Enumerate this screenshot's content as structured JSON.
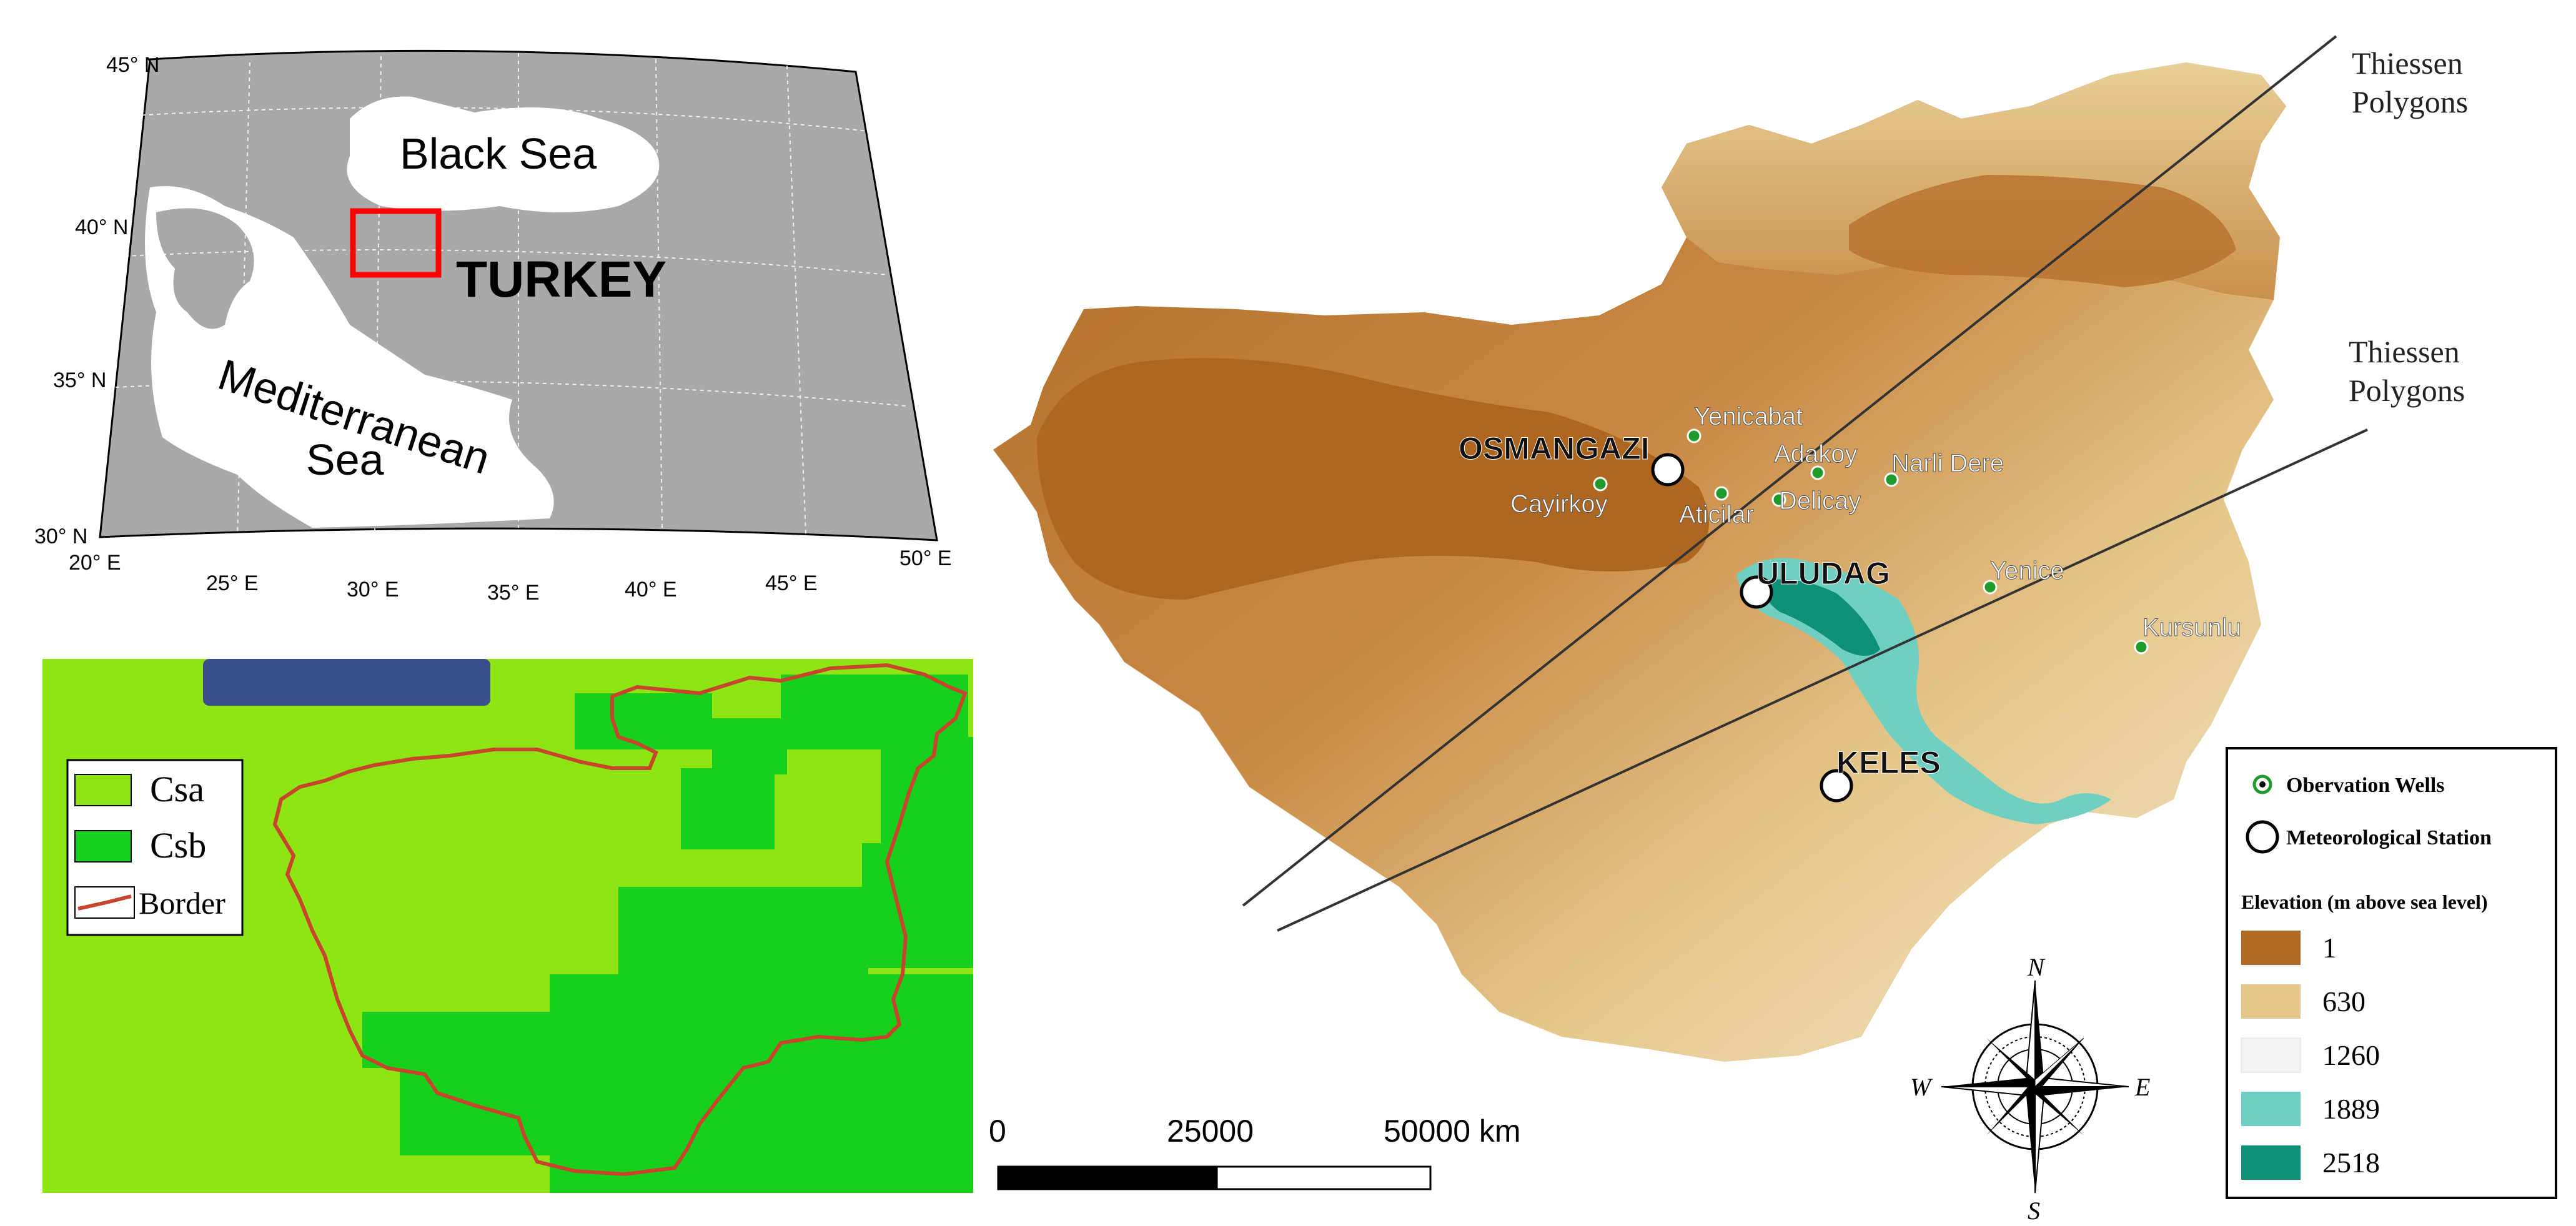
{
  "inset_map": {
    "lat_labels": [
      "45° N",
      "40° N",
      "35° N",
      "30° N"
    ],
    "lon_labels": [
      "20° E",
      "25° E",
      "30° E",
      "35° E",
      "40° E",
      "45° E",
      "50° E"
    ],
    "black_sea": "Black Sea",
    "mediterranean_line1": "Mediterranean",
    "mediterranean_line2": "Sea",
    "country": "TURKEY",
    "land_color": "#a9a9a9",
    "box_color": "#ff0000"
  },
  "climate_map": {
    "legend": [
      "Csa",
      "Csb",
      "Border"
    ],
    "csa_color": "#8ee513",
    "csb_color": "#16d01b",
    "border_color": "#c7452d"
  },
  "main_map": {
    "thiessen_labels": [
      {
        "line1": "Thiessen",
        "line2": "Polygons"
      },
      {
        "line1": "Thiessen",
        "line2": "Polygons"
      }
    ],
    "stations": [
      "OSMANGAZI",
      "ULUDAG",
      "KELES"
    ],
    "wells": [
      "Yenicabat",
      "Adakoy",
      "Narli Dere",
      "Cayirkoy",
      "Aticilar",
      "Delicay",
      "Yenice",
      "Kursunlu"
    ],
    "scale_bar": {
      "labels": [
        "0",
        "25000",
        "50000 km"
      ]
    },
    "compass": {
      "n": "N",
      "s": "S",
      "e": "E",
      "w": "W"
    }
  },
  "legend": {
    "observation_wells": "Obervation Wells",
    "meteorological_station": "Meteorological Station",
    "elevation_title": "Elevation (m above sea level)",
    "elevation_classes": [
      {
        "value": "1",
        "color": "#b06a24"
      },
      {
        "value": "630",
        "color": "#e6c88c"
      },
      {
        "value": "1260",
        "color": "#f2f2f2"
      },
      {
        "value": "1889",
        "color": "#6fcfc0"
      },
      {
        "value": "2518",
        "color": "#0d8f78"
      }
    ]
  }
}
